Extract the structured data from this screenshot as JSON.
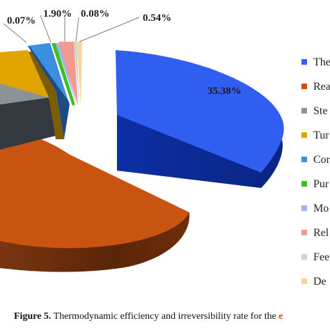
{
  "chart_data": {
    "type": "pie",
    "style": "exploded-3d",
    "series": [
      {
        "name": "The",
        "value": 35.38,
        "label": "35.38%",
        "color": "#2f5ef0"
      },
      {
        "name": "Rea",
        "value": null,
        "label": "",
        "color": "#c95310"
      },
      {
        "name": "Ste",
        "value": null,
        "label": "",
        "color": "#8c9296"
      },
      {
        "name": "Tur",
        "value": null,
        "label": "",
        "color": "#e0a400"
      },
      {
        "name": "Cor",
        "value": null,
        "label": "",
        "color": "#3c8ee0"
      },
      {
        "name": "Pur",
        "value": 0.07,
        "label": "0.07%",
        "color": "#3fbf25"
      },
      {
        "name": "Mo",
        "value": null,
        "label": "",
        "color": "#9ab6ef"
      },
      {
        "name": "Rel",
        "value": 1.9,
        "label": "1.90%",
        "color": "#f29a8e"
      },
      {
        "name": "Fee",
        "value": 0.08,
        "label": "0.08%",
        "color": "#cfd2d4"
      },
      {
        "name": "De",
        "value": 0.54,
        "label": "0.54%",
        "color": "#f7d59a"
      }
    ],
    "legend_position": "right"
  },
  "caption": {
    "bold": "Figure 5.",
    "text": " Thermodynamic efficiency and irreversibility rate for the ",
    "cut": "e"
  }
}
